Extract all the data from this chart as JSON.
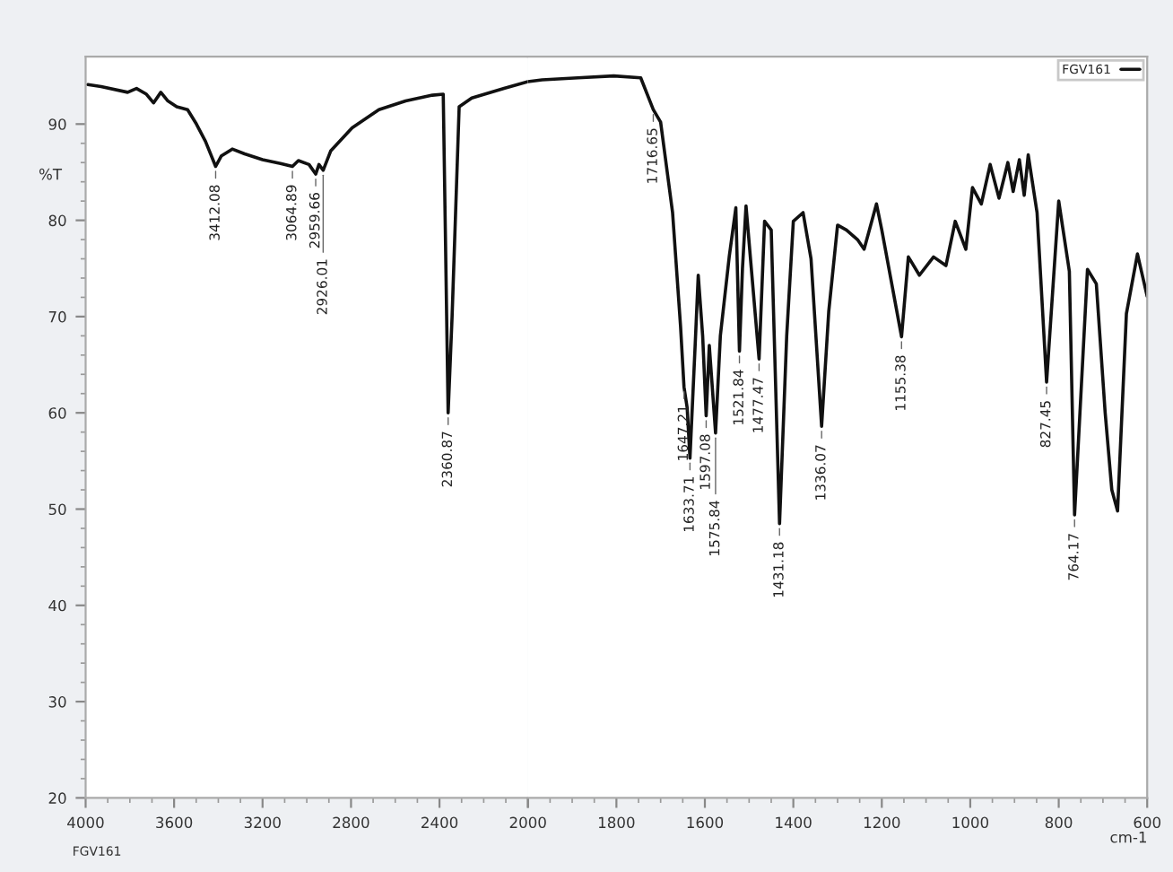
{
  "chart_data": [
    {
      "type": "line",
      "ylabel": "%T",
      "xlim": [
        4000,
        2000
      ],
      "xticks": [
        4000,
        3600,
        3200,
        2800,
        2400,
        2000
      ],
      "ylim": [
        20,
        97
      ],
      "yticks": [
        20,
        30,
        40,
        50,
        60,
        70,
        80,
        90
      ],
      "grid": false,
      "marker": "none",
      "line_style": "solid",
      "series": [
        {
          "color": "#111111",
          "x": [
            3990,
            3930,
            3810,
            3770,
            3725,
            3693,
            3660,
            3628,
            3588,
            3539,
            3499,
            3458,
            3412.08,
            3386,
            3337,
            3281,
            3200,
            3119,
            3064.89,
            3038,
            2990,
            2959.66,
            2945,
            2926.01,
            2892,
            2795,
            2674,
            2553,
            2432,
            2383,
            2360.87,
            2343,
            2311,
            2254,
            2108,
            2000
          ],
          "values": [
            94.1,
            93.9,
            93.3,
            93.7,
            93.1,
            92.2,
            93.3,
            92.4,
            91.8,
            91.5,
            90.0,
            88.2,
            85.6,
            86.7,
            87.4,
            86.9,
            86.3,
            85.9,
            85.6,
            86.2,
            85.8,
            84.8,
            85.8,
            85.2,
            87.2,
            89.6,
            91.5,
            92.4,
            93.0,
            93.1,
            60.0,
            70.0,
            91.8,
            92.7,
            93.7,
            94.4
          ]
        }
      ],
      "annotations": [
        {
          "text": "3412.08",
          "x": 3412.08,
          "y": 85.6
        },
        {
          "text": "3064.89",
          "x": 3064.89,
          "y": 85.6
        },
        {
          "text": "2959.66",
          "x": 2959.66,
          "y": 84.8
        },
        {
          "text": "2926.01",
          "x": 2926.01,
          "y": 85.2
        },
        {
          "text": "2360.87",
          "x": 2360.87,
          "y": 60.0
        },
        "FGV161"
      ]
    },
    {
      "type": "line",
      "xlabel": "cm-1",
      "xlim": [
        2000,
        600
      ],
      "xticks": [
        {
          "value": 2000,
          "label": null
        },
        1800,
        1600,
        1400,
        1200,
        1000,
        800,
        600
      ],
      "ylim": [
        20,
        97
      ],
      "yticks": [
        20,
        30,
        40,
        50,
        60,
        70,
        80,
        90
      ],
      "tick_labels": "x",
      "grid": false,
      "legend": "top right",
      "marker": "none",
      "line_style": "solid",
      "series": [
        {
          "name": "FGV161",
          "color": "#111111",
          "x": [
            2000,
            1968,
            1887,
            1806,
            1745,
            1716.65,
            1700,
            1673,
            1655,
            1647.21,
            1640,
            1633.71,
            1622,
            1615,
            1605,
            1597.08,
            1590,
            1575.84,
            1565,
            1545,
            1530,
            1521.84,
            1515,
            1507,
            1495,
            1477.47,
            1465,
            1450,
            1431.18,
            1415,
            1400,
            1378,
            1360,
            1336.07,
            1320,
            1300,
            1280,
            1255,
            1240,
            1212,
            1200,
            1155.38,
            1140,
            1115,
            1083,
            1055,
            1034,
            1010,
            995,
            975,
            955,
            935,
            915,
            903,
            889,
            878,
            869,
            849,
            827.45,
            800,
            776,
            764.17,
            735,
            715,
            695,
            680,
            667,
            647,
            622,
            600
          ],
          "values": [
            94.4,
            94.6,
            94.8,
            95.0,
            94.8,
            91.5,
            90.2,
            80.8,
            69.0,
            62.7,
            60.5,
            55.3,
            67.0,
            74.3,
            68.0,
            59.7,
            67.0,
            57.9,
            68.0,
            76.2,
            81.3,
            66.4,
            75.0,
            81.5,
            75.0,
            65.6,
            79.9,
            79.0,
            48.5,
            68.0,
            79.9,
            80.8,
            76.0,
            58.6,
            70.5,
            79.5,
            79.0,
            78.0,
            77.0,
            81.7,
            79.0,
            67.9,
            76.2,
            74.3,
            76.2,
            75.3,
            79.9,
            77.0,
            83.4,
            81.7,
            85.8,
            82.3,
            86.0,
            83.0,
            86.3,
            82.6,
            86.8,
            80.8,
            63.2,
            82.0,
            74.7,
            49.4,
            74.9,
            73.4,
            60.0,
            52.0,
            49.8,
            70.3,
            76.5,
            72.1
          ]
        }
      ],
      "annotations": [
        {
          "text": "1716.65",
          "x": 1716.65,
          "y": 91.5
        },
        {
          "text": "1647.21",
          "x": 1647.21,
          "y": 62.7
        },
        {
          "text": "1633.71",
          "x": 1633.71,
          "y": 55.3
        },
        {
          "text": "1597.08",
          "x": 1597.08,
          "y": 59.7
        },
        {
          "text": "1575.84",
          "x": 1575.84,
          "y": 57.9
        },
        {
          "text": "1521.84",
          "x": 1521.84,
          "y": 66.4
        },
        {
          "text": "1477.47",
          "x": 1477.47,
          "y": 65.6
        },
        {
          "text": "1431.18",
          "x": 1431.18,
          "y": 48.5
        },
        {
          "text": "1336.07",
          "x": 1336.07,
          "y": 58.6
        },
        {
          "text": "1155.38",
          "x": 1155.38,
          "y": 67.9
        },
        {
          "text": "827.45",
          "x": 827.45,
          "y": 63.2
        },
        {
          "text": "764.17",
          "x": 764.17,
          "y": 49.4
        }
      ]
    }
  ]
}
